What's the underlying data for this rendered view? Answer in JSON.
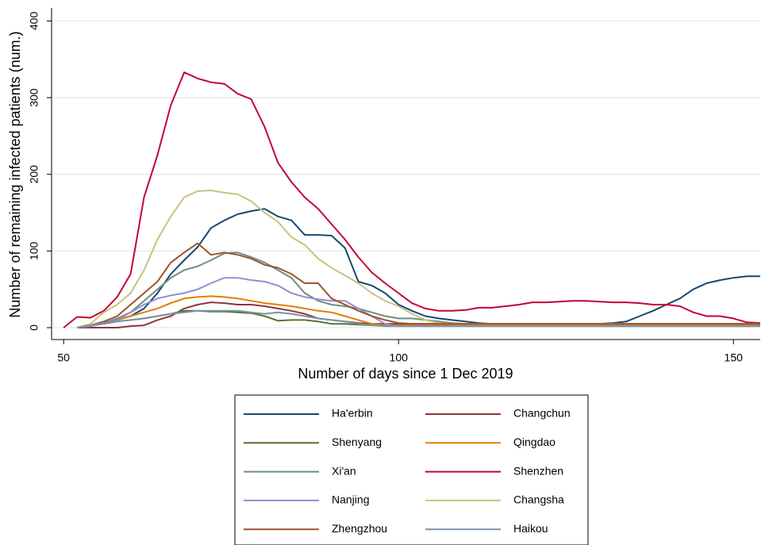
{
  "chart_data": {
    "type": "line",
    "xlabel": "Number of days since 1 Dec 2019",
    "ylabel": "Number of remaining infected patients (num.)",
    "xlim": [
      48.2,
      154
    ],
    "ylim": [
      -15.5,
      417
    ],
    "xticks": [
      50,
      100,
      150
    ],
    "yticks": [
      0,
      100,
      200,
      300,
      400
    ],
    "grid": true,
    "legend": "bottom",
    "x": [
      50,
      52,
      54,
      56,
      58,
      60,
      62,
      64,
      66,
      68,
      70,
      72,
      74,
      76,
      78,
      80,
      82,
      84,
      86,
      88,
      90,
      92,
      94,
      96,
      98,
      100,
      102,
      104,
      106,
      108,
      110,
      112,
      114,
      116,
      118,
      120,
      122,
      124,
      126,
      128,
      130,
      132,
      134,
      136,
      138,
      140,
      142,
      144,
      146,
      148,
      150,
      152,
      154
    ],
    "series": [
      {
        "name": "Ha'erbin",
        "color": "#1a476f",
        "values": [
          null,
          0,
          2,
          6,
          10,
          15,
          25,
          45,
          70,
          88,
          105,
          130,
          140,
          148,
          152,
          155,
          145,
          140,
          121,
          121,
          120,
          104,
          60,
          55,
          45,
          30,
          22,
          15,
          12,
          10,
          8,
          6,
          5,
          5,
          5,
          5,
          5,
          5,
          5,
          5,
          5,
          6,
          8,
          15,
          22,
          30,
          38,
          50,
          58,
          62,
          65,
          67,
          67
        ]
      },
      {
        "name": "Changchun",
        "color": "#90353b",
        "values": [
          null,
          0,
          0,
          0,
          0,
          2,
          3,
          10,
          15,
          25,
          30,
          33,
          32,
          30,
          30,
          28,
          25,
          22,
          18,
          12,
          10,
          8,
          6,
          5,
          5,
          5,
          5,
          5,
          5,
          5,
          5,
          5,
          5,
          5,
          5,
          5,
          5,
          5,
          5,
          5,
          5,
          5,
          5,
          5,
          5,
          5,
          5,
          5,
          5,
          5,
          5,
          5,
          5
        ]
      },
      {
        "name": "Shenyang",
        "color": "#55752f",
        "values": [
          null,
          0,
          3,
          5,
          8,
          10,
          12,
          15,
          18,
          22,
          22,
          21,
          21,
          20,
          19,
          15,
          9,
          10,
          10,
          8,
          5,
          5,
          4,
          3,
          3,
          3,
          3,
          3,
          3,
          3,
          3,
          3,
          3,
          3,
          3,
          3,
          3,
          3,
          3,
          3,
          3,
          3,
          3,
          3,
          3,
          3,
          3,
          3,
          3,
          3,
          3,
          3,
          3
        ]
      },
      {
        "name": "Qingdao",
        "color": "#e37e00",
        "values": [
          null,
          0,
          3,
          6,
          10,
          15,
          20,
          25,
          32,
          38,
          40,
          41,
          40,
          38,
          35,
          32,
          30,
          28,
          25,
          22,
          20,
          15,
          10,
          5,
          3,
          3,
          3,
          3,
          3,
          3,
          3,
          3,
          3,
          3,
          3,
          3,
          3,
          3,
          3,
          3,
          3,
          3,
          3,
          3,
          3,
          3,
          3,
          3,
          3,
          3,
          3,
          3,
          3
        ]
      },
      {
        "name": "Xi'an",
        "color": "#6e8e84",
        "values": [
          null,
          0,
          3,
          6,
          12,
          20,
          35,
          50,
          65,
          75,
          80,
          88,
          97,
          98,
          92,
          85,
          75,
          65,
          45,
          35,
          30,
          28,
          25,
          20,
          15,
          12,
          12,
          10,
          8,
          6,
          5,
          5,
          5,
          5,
          5,
          5,
          5,
          5,
          5,
          5,
          5,
          5,
          5,
          5,
          5,
          5,
          5,
          5,
          5,
          5,
          5,
          5,
          5
        ]
      },
      {
        "name": "Shenzhen",
        "color": "#c10534",
        "values": [
          0,
          14,
          13,
          22,
          40,
          70,
          170,
          225,
          290,
          333,
          325,
          320,
          318,
          305,
          298,
          262,
          215,
          190,
          170,
          155,
          135,
          115,
          92,
          72,
          58,
          45,
          32,
          25,
          22,
          22,
          23,
          26,
          26,
          28,
          30,
          33,
          33,
          34,
          35,
          35,
          34,
          33,
          33,
          32,
          30,
          30,
          28,
          20,
          15,
          15,
          12,
          7,
          6
        ]
      },
      {
        "name": "Nanjing",
        "color": "#938dd2",
        "values": [
          null,
          0,
          2,
          5,
          10,
          20,
          30,
          38,
          42,
          45,
          50,
          58,
          65,
          65,
          62,
          60,
          55,
          45,
          40,
          37,
          35,
          35,
          25,
          15,
          5,
          2,
          2,
          2,
          2,
          2,
          2,
          2,
          2,
          2,
          2,
          2,
          2,
          2,
          2,
          2,
          2,
          2,
          2,
          2,
          2,
          2,
          2,
          2,
          2,
          2,
          2,
          2,
          2
        ]
      },
      {
        "name": "Changsha",
        "color": "#cac27e",
        "values": [
          null,
          0,
          5,
          20,
          30,
          45,
          75,
          115,
          145,
          170,
          178,
          179,
          176,
          174,
          165,
          150,
          138,
          118,
          108,
          90,
          78,
          68,
          58,
          45,
          35,
          28,
          18,
          10,
          6,
          5,
          5,
          5,
          5,
          5,
          5,
          5,
          5,
          5,
          5,
          5,
          5,
          5,
          5,
          5,
          5,
          5,
          5,
          5,
          5,
          5,
          5,
          5,
          5
        ]
      },
      {
        "name": "Zhengzhou",
        "color": "#a0522d",
        "values": [
          null,
          0,
          3,
          8,
          15,
          30,
          45,
          60,
          85,
          98,
          110,
          95,
          98,
          95,
          90,
          82,
          78,
          70,
          58,
          58,
          38,
          30,
          22,
          15,
          10,
          6,
          5,
          5,
          5,
          5,
          5,
          5,
          5,
          5,
          5,
          5,
          5,
          5,
          5,
          5,
          5,
          5,
          5,
          5,
          5,
          5,
          5,
          5,
          5,
          5,
          5,
          5,
          5
        ]
      },
      {
        "name": "Haikou",
        "color": "#7b92a8",
        "values": [
          null,
          0,
          3,
          6,
          8,
          10,
          12,
          15,
          18,
          20,
          22,
          22,
          22,
          22,
          20,
          18,
          20,
          18,
          15,
          12,
          10,
          8,
          5,
          3,
          2,
          2,
          2,
          2,
          2,
          2,
          2,
          2,
          2,
          2,
          2,
          2,
          2,
          2,
          2,
          2,
          2,
          2,
          2,
          2,
          2,
          2,
          2,
          2,
          2,
          2,
          2,
          2,
          2
        ]
      }
    ]
  }
}
